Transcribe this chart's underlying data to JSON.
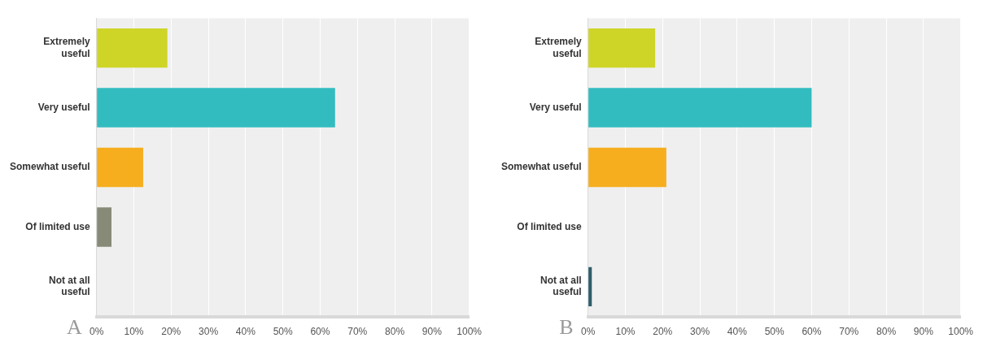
{
  "chart_data": [
    {
      "type": "bar",
      "orientation": "horizontal",
      "categories": [
        "Extremely useful",
        "Very useful",
        "Somewhat useful",
        "Of limited use",
        "Not at all useful"
      ],
      "values": [
        19,
        64,
        12.5,
        4,
        0
      ],
      "colors": [
        "#cfd527",
        "#33bcbf",
        "#f6ae1f",
        "#888a78",
        "#2e5e6a"
      ],
      "xlim": [
        0,
        100
      ],
      "xticks": [
        {
          "value": 0,
          "label": "0%"
        },
        {
          "value": 10,
          "label": "10%"
        },
        {
          "value": 20,
          "label": "20%"
        },
        {
          "value": 30,
          "label": "30%"
        },
        {
          "value": 40,
          "label": "40%"
        },
        {
          "value": 50,
          "label": "50%"
        },
        {
          "value": 60,
          "label": "60%"
        },
        {
          "value": 70,
          "label": "70%"
        },
        {
          "value": 80,
          "label": "80%"
        },
        {
          "value": 90,
          "label": "90%"
        },
        {
          "value": 100,
          "label": "100%"
        }
      ],
      "grid": "x",
      "legend": false,
      "annotations": [
        "A"
      ]
    },
    {
      "type": "bar",
      "orientation": "horizontal",
      "categories": [
        "Extremely useful",
        "Very useful",
        "Somewhat useful",
        "Of limited use",
        "Not at all useful"
      ],
      "values": [
        18,
        60,
        21,
        0,
        1
      ],
      "colors": [
        "#cfd527",
        "#33bcbf",
        "#f6ae1f",
        "#888a78",
        "#2e5e6a"
      ],
      "xlim": [
        0,
        100
      ],
      "xticks": [
        {
          "value": 0,
          "label": "0%"
        },
        {
          "value": 10,
          "label": "10%"
        },
        {
          "value": 20,
          "label": "20%"
        },
        {
          "value": 30,
          "label": "30%"
        },
        {
          "value": 40,
          "label": "40%"
        },
        {
          "value": 50,
          "label": "50%"
        },
        {
          "value": 60,
          "label": "60%"
        },
        {
          "value": 70,
          "label": "70%"
        },
        {
          "value": 80,
          "label": "80%"
        },
        {
          "value": 90,
          "label": "90%"
        },
        {
          "value": 100,
          "label": "100%"
        }
      ],
      "grid": "x",
      "legend": false,
      "annotations": [
        "B"
      ]
    }
  ]
}
